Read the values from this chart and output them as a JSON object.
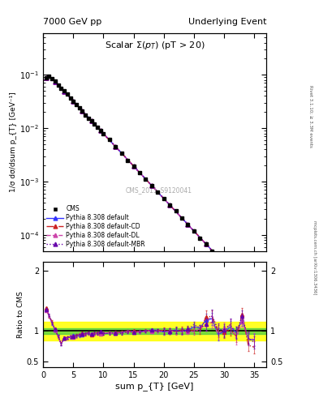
{
  "title_left": "7000 GeV pp",
  "title_right": "Underlying Event",
  "panel1_title": "Scalar Σ(p_{T}) (pT > 20)",
  "ylabel1": "1/σ dσ/dsum p_{T} [GeV⁻¹]",
  "ylabel2": "Ratio to CMS",
  "xlabel": "sum p_{T} [GeV]",
  "right_label_top": "Rivet 3.1.10; ≥ 3.3M events",
  "right_label_bot": "mcplots.cern.ch [arXiv:1306.3436]",
  "watermark": "CMS_2011_S9120041",
  "xmin": 0,
  "xmax": 37,
  "y1min": 5e-05,
  "y1max": 0.6,
  "y2min": 0.4,
  "y2max": 2.15,
  "green_band": 0.05,
  "yellow_band": 0.15,
  "cms_color": "#000000",
  "default_color": "#3333ff",
  "cd_color": "#cc2222",
  "dl_color": "#cc44aa",
  "mbr_color": "#6600aa",
  "legend_entries": [
    "CMS",
    "Pythia 8.308 default",
    "Pythia 8.308 default-CD",
    "Pythia 8.308 default-DL",
    "Pythia 8.308 default-MBR"
  ]
}
